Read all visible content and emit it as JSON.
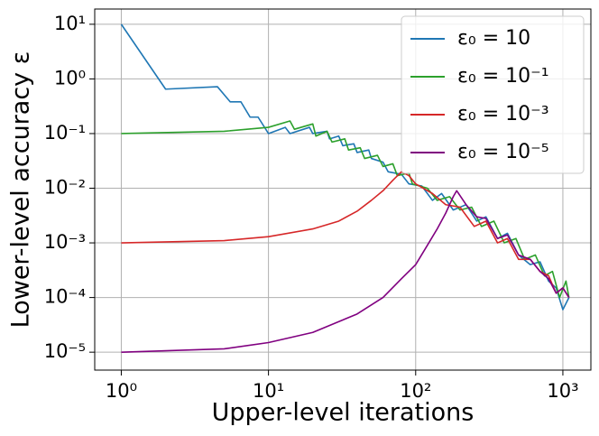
{
  "chart_data": {
    "type": "line",
    "xlabel": "Upper-level iterations",
    "ylabel": "Lower-level accuracy ε",
    "xscale": "log",
    "yscale": "log",
    "grid": true,
    "legend": "upper right",
    "xlim": [
      0.66,
      1550
    ],
    "ylim": [
      4.7e-06,
      19
    ],
    "xticks": [
      {
        "value": 1,
        "label": "10⁰"
      },
      {
        "value": 10,
        "label": "10¹"
      },
      {
        "value": 100,
        "label": "10²"
      },
      {
        "value": 1000,
        "label": "10³"
      }
    ],
    "yticks": [
      {
        "value": 1e-05,
        "label": "10⁻⁵"
      },
      {
        "value": 0.0001,
        "label": "10⁻⁴"
      },
      {
        "value": 0.001,
        "label": "10⁻³"
      },
      {
        "value": 0.01,
        "label": "10⁻²"
      },
      {
        "value": 0.1,
        "label": "10⁻¹"
      },
      {
        "value": 1,
        "label": "10⁰"
      },
      {
        "value": 10,
        "label": "10¹"
      }
    ],
    "series": [
      {
        "name": "ε₀ = 10",
        "color": "#1f77b4",
        "x": [
          1,
          2,
          4.5,
          5.5,
          6.5,
          7.5,
          8.5,
          10,
          13,
          14,
          19,
          20,
          25,
          26,
          30,
          32,
          38,
          40,
          48,
          50,
          60,
          65,
          80,
          90,
          110,
          130,
          150,
          180,
          220,
          260,
          300,
          360,
          420,
          500,
          600,
          700,
          800,
          900,
          1000,
          1100
        ],
        "values": [
          10,
          0.65,
          0.72,
          0.38,
          0.38,
          0.2,
          0.2,
          0.1,
          0.13,
          0.1,
          0.13,
          0.1,
          0.11,
          0.08,
          0.09,
          0.06,
          0.065,
          0.045,
          0.05,
          0.035,
          0.03,
          0.02,
          0.018,
          0.012,
          0.011,
          0.006,
          0.008,
          0.004,
          0.005,
          0.0025,
          0.003,
          0.0012,
          0.0015,
          0.0006,
          0.0004,
          0.00045,
          0.0002,
          0.00015,
          6e-05,
          0.0001
        ]
      },
      {
        "name": "ε₀ = 10⁻¹",
        "color": "#2ca02c",
        "x": [
          1,
          5,
          10,
          14,
          15,
          20,
          21,
          25,
          27,
          33,
          35,
          42,
          45,
          55,
          60,
          70,
          75,
          90,
          95,
          120,
          140,
          170,
          200,
          240,
          280,
          340,
          400,
          480,
          550,
          650,
          750,
          850,
          950,
          1050,
          1100
        ],
        "values": [
          0.1,
          0.11,
          0.13,
          0.17,
          0.12,
          0.15,
          0.09,
          0.11,
          0.07,
          0.08,
          0.05,
          0.055,
          0.035,
          0.04,
          0.025,
          0.028,
          0.017,
          0.019,
          0.012,
          0.01,
          0.006,
          0.007,
          0.004,
          0.0045,
          0.002,
          0.0025,
          0.001,
          0.0012,
          0.0005,
          0.0006,
          0.00025,
          0.0003,
          0.0001,
          0.0002,
          0.0001
        ]
      },
      {
        "name": "ε₀ = 10⁻³",
        "color": "#d62728",
        "x": [
          1,
          5,
          10,
          20,
          30,
          40,
          50,
          60,
          70,
          80,
          90,
          100,
          130,
          160,
          200,
          250,
          300,
          360,
          420,
          500,
          600,
          700,
          800,
          900,
          1000,
          1100
        ],
        "values": [
          0.001,
          0.0011,
          0.0013,
          0.0018,
          0.0025,
          0.0038,
          0.006,
          0.009,
          0.014,
          0.02,
          0.017,
          0.012,
          0.008,
          0.005,
          0.0045,
          0.002,
          0.0025,
          0.001,
          0.0012,
          0.0005,
          0.0005,
          0.0003,
          0.00025,
          0.00012,
          0.00015,
          0.0001
        ]
      },
      {
        "name": "ε₀ = 10⁻⁵",
        "color": "#800080",
        "x": [
          1,
          5,
          10,
          20,
          40,
          60,
          80,
          100,
          120,
          140,
          160,
          180,
          190,
          220,
          260,
          300,
          360,
          420,
          500,
          600,
          700,
          800,
          900,
          1000,
          1100
        ],
        "values": [
          1e-05,
          1.15e-05,
          1.5e-05,
          2.3e-05,
          5e-05,
          0.0001,
          0.00022,
          0.0004,
          0.0009,
          0.0018,
          0.0035,
          0.007,
          0.009,
          0.005,
          0.003,
          0.0028,
          0.0012,
          0.0014,
          0.0006,
          0.0005,
          0.0003,
          0.00022,
          0.00012,
          0.00015,
          0.0001
        ]
      }
    ]
  }
}
